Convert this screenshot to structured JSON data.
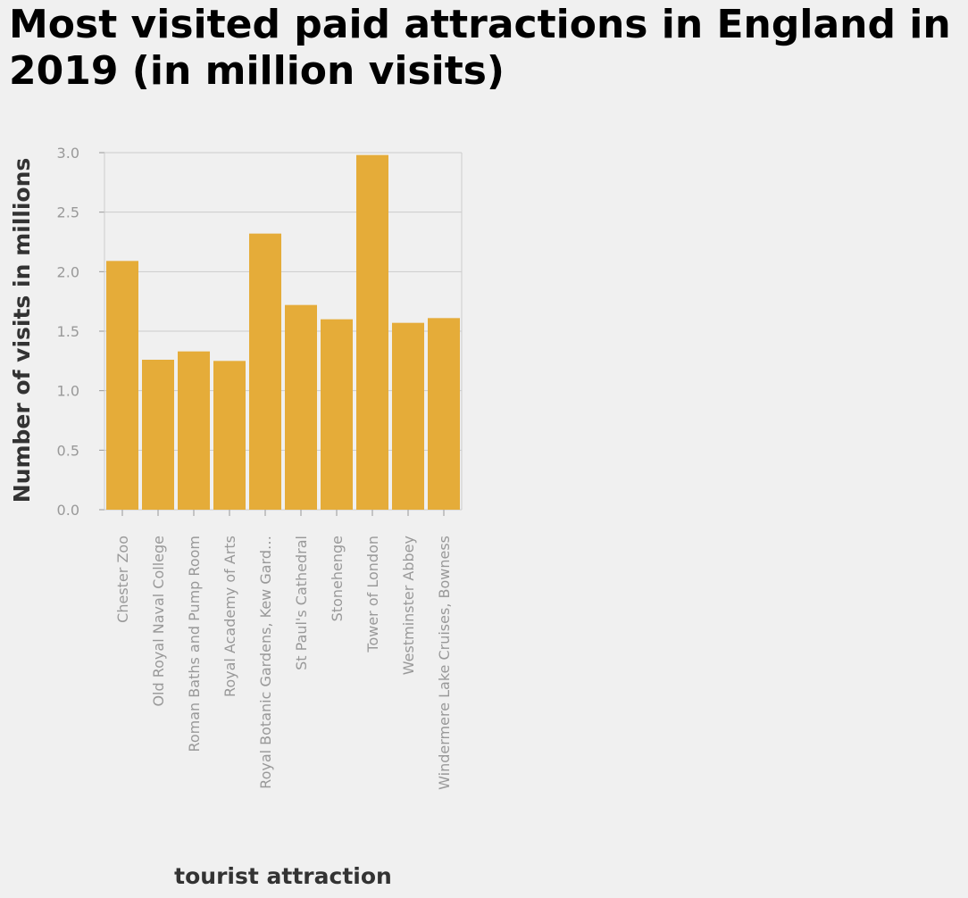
{
  "chart_data": {
    "type": "bar",
    "title": "Most visited paid attractions in England in 2019 (in million visits)",
    "xlabel": "tourist attraction",
    "ylabel": "Number of visits in millions",
    "categories": [
      "Chester Zoo",
      "Old Royal Naval College",
      "Roman Baths and Pump Room",
      "Royal Academy of Arts",
      "Royal Botanic Gardens, Kew Gard…",
      "St Paul's Cathedral",
      "Stonehenge",
      "Tower of London",
      "Westminster Abbey",
      "Windermere Lake Cruises, Bowness"
    ],
    "values": [
      2.09,
      1.26,
      1.33,
      1.25,
      2.32,
      1.72,
      1.6,
      2.98,
      1.57,
      1.61
    ],
    "ylim": [
      0,
      3.0
    ],
    "yticks": [
      "0.0",
      "0.5",
      "1.0",
      "1.5",
      "2.0",
      "2.5",
      "3.0"
    ],
    "grid": true,
    "colors": {
      "bar": "#e5ac39",
      "grid": "#cccccc",
      "background": "#f0f0f0"
    }
  }
}
